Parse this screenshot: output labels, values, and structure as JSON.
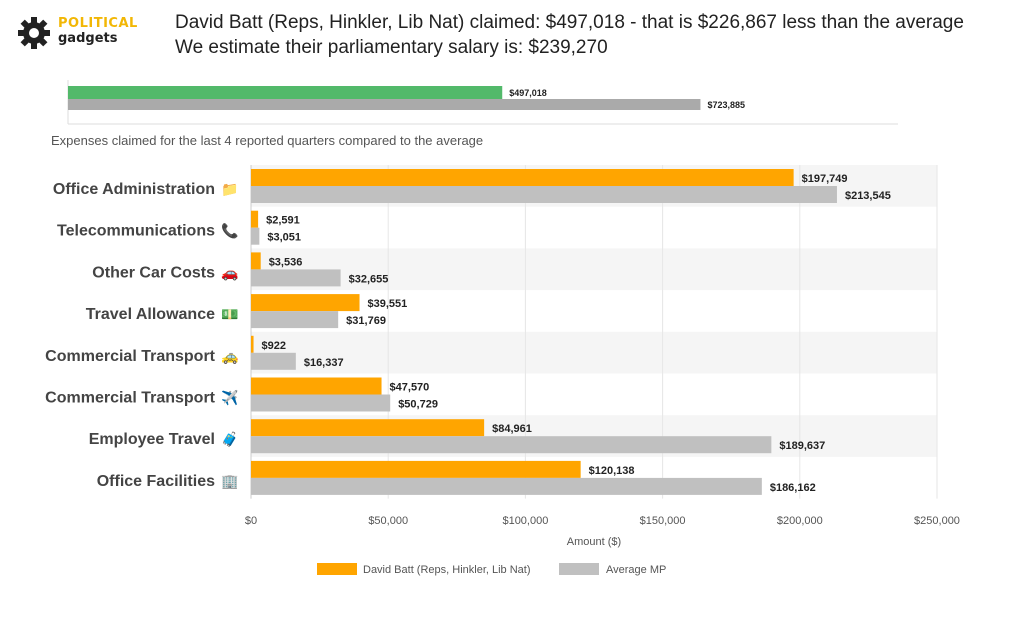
{
  "brand": {
    "line1": "POLITICAL",
    "line2": "gadgets",
    "icon": "gear-icon"
  },
  "headline": {
    "line1": "David Batt (Reps, Hinkler, Lib Nat) claimed: $497,018 - that is $226,867 less than the average",
    "line2": "We estimate their parliamentary salary is: $239,270"
  },
  "summary_chart": {
    "type": "bar",
    "values": [
      497018,
      723885
    ],
    "labels": [
      "$497,018",
      "$723,885"
    ],
    "colors": [
      "#52b96a",
      "#aaaaaa"
    ],
    "xlim": [
      0,
      950000
    ]
  },
  "subtitle": "Expenses claimed for the last 4 reported quarters compared to the average",
  "chart_data": {
    "type": "bar",
    "orientation": "horizontal",
    "categories": [
      "Office Administration",
      "Telecommunications",
      "Other Car Costs",
      "Travel Allowance",
      "Commercial Transport",
      "Commercial Transport",
      "Employee Travel",
      "Office Facilities"
    ],
    "category_icons": [
      "📁",
      "📞",
      "🚗",
      "💵",
      "🚕",
      "✈️",
      "🧳",
      "🏢"
    ],
    "series": [
      {
        "name": "David Batt  (Reps, Hinkler, Lib Nat)",
        "color": "#ffa500",
        "values": [
          197749,
          2591,
          3536,
          39551,
          922,
          47570,
          84961,
          120138
        ],
        "labels": [
          "$197,749",
          "$2,591",
          "$3,536",
          "$39,551",
          "$922",
          "$47,570",
          "$84,961",
          "$120,138"
        ]
      },
      {
        "name": "Average MP",
        "color": "#c0c0c0",
        "values": [
          213545,
          3051,
          32655,
          31769,
          16337,
          50729,
          189637,
          186162
        ],
        "labels": [
          "$213,545",
          "$3,051",
          "$32,655",
          "$31,769",
          "$16,337",
          "$50,729",
          "$189,637",
          "$186,162"
        ]
      }
    ],
    "xticks": [
      "$0",
      "$50,000",
      "$100,000",
      "$150,000",
      "$200,000",
      "$250,000"
    ],
    "xlim": [
      0,
      250000
    ],
    "xlabel": "Amount ($)",
    "legend_position": "bottom"
  }
}
